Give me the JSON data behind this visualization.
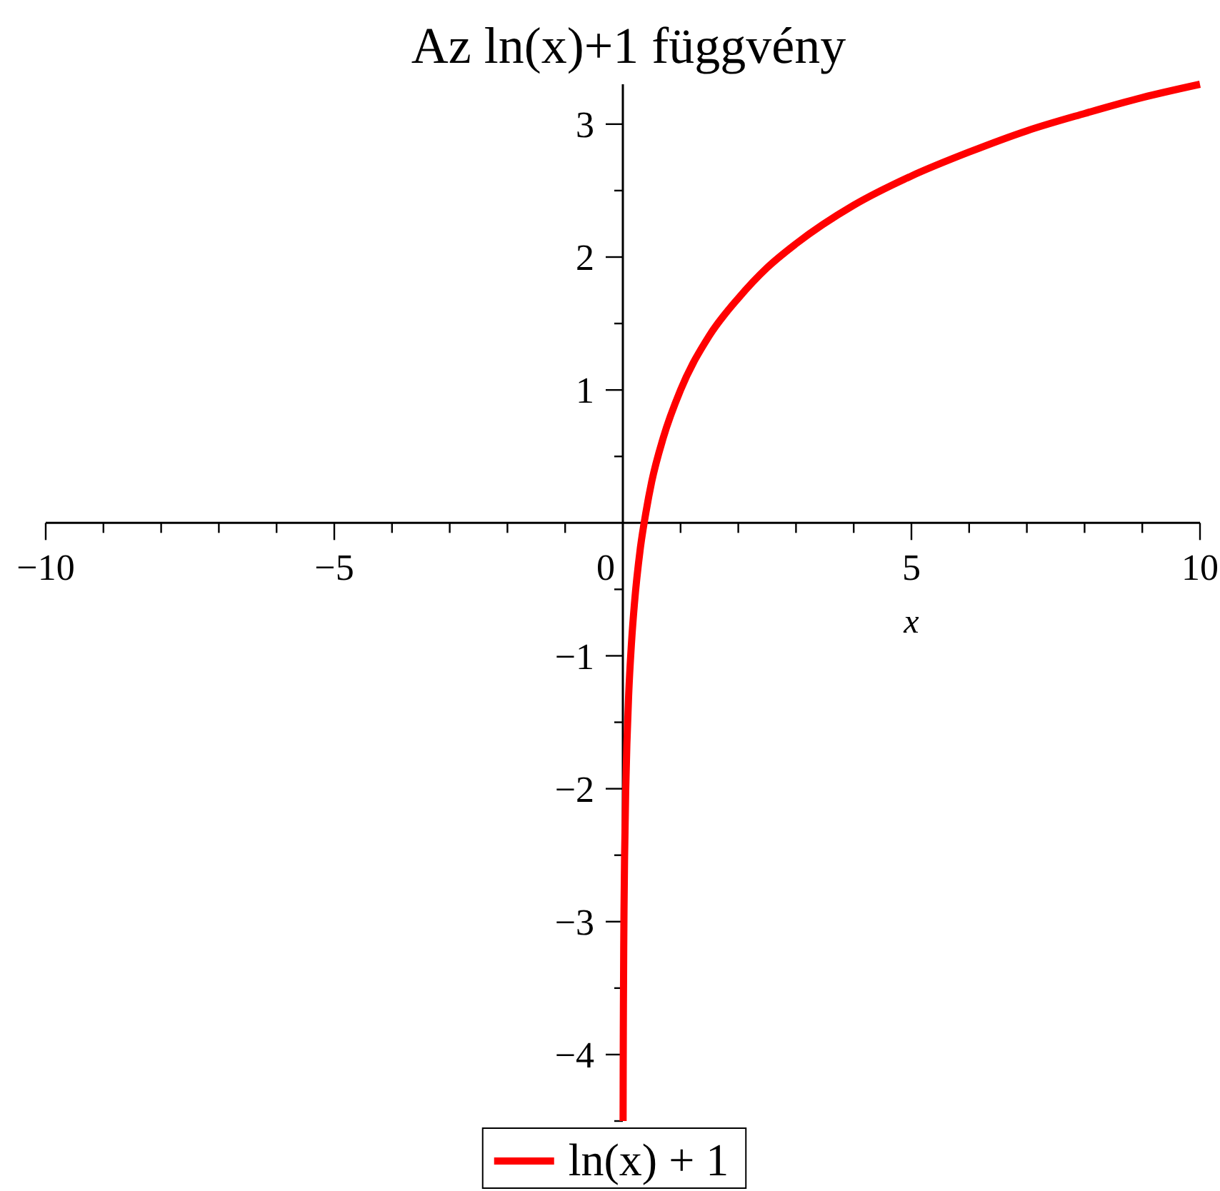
{
  "chart_data": {
    "type": "line",
    "title": "Az ln(x)+1 függvény",
    "xlabel": "x",
    "x": [
      0.0041,
      0.006,
      0.008,
      0.01,
      0.015,
      0.02,
      0.03,
      0.05,
      0.07,
      0.1,
      0.15,
      0.2,
      0.3,
      0.4,
      0.5,
      0.7,
      1,
      1.5,
      2,
      2.5,
      3,
      4,
      5,
      6,
      7,
      8,
      9,
      10
    ],
    "series": [
      {
        "name": "ln(x) + 1",
        "color": "#ff0000",
        "values": [
          -4.5,
          -4.12,
          -3.83,
          -3.61,
          -3.2,
          -2.91,
          -2.51,
          -2.0,
          -1.66,
          -1.3,
          -0.9,
          -0.61,
          -0.2,
          0.08,
          0.31,
          0.64,
          1.0,
          1.41,
          1.69,
          1.92,
          2.1,
          2.39,
          2.61,
          2.79,
          2.95,
          3.08,
          3.2,
          3.3
        ]
      }
    ],
    "xlim": [
      -10,
      10
    ],
    "ylim": [
      -4.5,
      3.3
    ],
    "xticks": [
      -10,
      {
        "value": -9,
        "label": null
      },
      {
        "value": -8,
        "label": null
      },
      {
        "value": -7,
        "label": null
      },
      {
        "value": -6,
        "label": null
      },
      -5,
      {
        "value": -4,
        "label": null
      },
      {
        "value": -3,
        "label": null
      },
      {
        "value": -2,
        "label": null
      },
      {
        "value": -1,
        "label": null
      },
      0,
      {
        "value": 1,
        "label": null
      },
      {
        "value": 2,
        "label": null
      },
      {
        "value": 3,
        "label": null
      },
      {
        "value": 4,
        "label": null
      },
      5,
      {
        "value": 6,
        "label": null
      },
      {
        "value": 7,
        "label": null
      },
      {
        "value": 8,
        "label": null
      },
      {
        "value": 9,
        "label": null
      },
      10
    ],
    "yticks": [
      {
        "value": -4.5,
        "label": null
      },
      -4,
      {
        "value": -3.5,
        "label": null
      },
      -3,
      {
        "value": -2.5,
        "label": null
      },
      -2,
      {
        "value": -1.5,
        "label": null
      },
      -1,
      {
        "value": -0.5,
        "label": null
      },
      {
        "value": 0.5,
        "label": null
      },
      1,
      {
        "value": 1.5,
        "label": null
      },
      2,
      {
        "value": 2.5,
        "label": null
      },
      3
    ],
    "legend": "bottom",
    "marker": "none",
    "grid": false
  }
}
